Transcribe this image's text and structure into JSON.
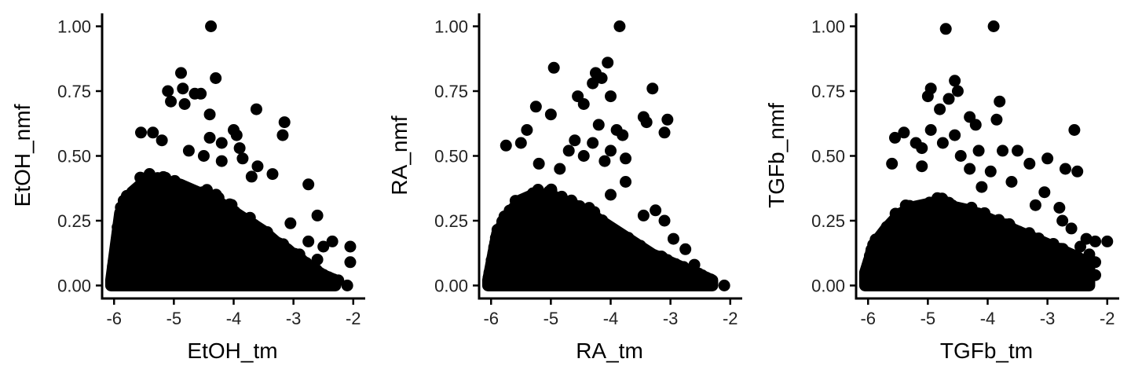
{
  "chart_data": [
    {
      "type": "scatter",
      "xlabel": "EtOH_tm",
      "ylabel": "EtOH_nmf",
      "xlim": [
        -6.2,
        -1.8
      ],
      "ylim": [
        -0.05,
        1.05
      ],
      "xticks": [
        -6,
        -5,
        -4,
        -3,
        -2
      ],
      "xtick_labels": [
        "-6",
        "-5",
        "-4",
        "-3",
        "-2"
      ],
      "yticks": [
        0,
        0.25,
        0.5,
        0.75,
        1.0
      ],
      "ytick_labels": [
        "0.00",
        "0.25",
        "0.50",
        "0.75",
        "1.00"
      ],
      "point_color": "#000000",
      "grid": false,
      "dense_region": {
        "x_start": -6.0,
        "x_end": -2.3,
        "edge_x": [
          -6.05,
          -5.9,
          -5.7,
          -5.5,
          -5.3,
          -5.1,
          -4.9,
          -4.7,
          -4.5,
          -4.3,
          -4.1,
          -3.9,
          -3.7,
          -3.5,
          -3.3,
          -3.1,
          -2.9,
          -2.7,
          -2.5,
          -2.3
        ],
        "edge_y": [
          0.02,
          0.28,
          0.36,
          0.4,
          0.41,
          0.4,
          0.39,
          0.37,
          0.35,
          0.33,
          0.3,
          0.27,
          0.24,
          0.21,
          0.17,
          0.14,
          0.1,
          0.07,
          0.04,
          0.02
        ]
      },
      "outliers": [
        {
          "x": -4.38,
          "y": 1.0
        },
        {
          "x": -4.88,
          "y": 0.82
        },
        {
          "x": -4.3,
          "y": 0.8
        },
        {
          "x": -5.1,
          "y": 0.75
        },
        {
          "x": -4.85,
          "y": 0.76
        },
        {
          "x": -4.55,
          "y": 0.74
        },
        {
          "x": -4.65,
          "y": 0.74
        },
        {
          "x": -5.05,
          "y": 0.71
        },
        {
          "x": -4.82,
          "y": 0.7
        },
        {
          "x": -3.62,
          "y": 0.68
        },
        {
          "x": -4.4,
          "y": 0.66
        },
        {
          "x": -3.15,
          "y": 0.63
        },
        {
          "x": -4.0,
          "y": 0.6
        },
        {
          "x": -5.55,
          "y": 0.59
        },
        {
          "x": -5.35,
          "y": 0.59
        },
        {
          "x": -3.95,
          "y": 0.58
        },
        {
          "x": -3.18,
          "y": 0.58
        },
        {
          "x": -4.4,
          "y": 0.57
        },
        {
          "x": -5.2,
          "y": 0.56
        },
        {
          "x": -4.2,
          "y": 0.55
        },
        {
          "x": -3.9,
          "y": 0.53
        },
        {
          "x": -4.75,
          "y": 0.52
        },
        {
          "x": -4.5,
          "y": 0.5
        },
        {
          "x": -3.85,
          "y": 0.49
        },
        {
          "x": -4.2,
          "y": 0.48
        },
        {
          "x": -3.6,
          "y": 0.46
        },
        {
          "x": -3.35,
          "y": 0.43
        },
        {
          "x": -3.7,
          "y": 0.42
        },
        {
          "x": -2.75,
          "y": 0.39
        },
        {
          "x": -3.05,
          "y": 0.24
        },
        {
          "x": -2.6,
          "y": 0.27
        },
        {
          "x": -2.35,
          "y": 0.17
        },
        {
          "x": -2.5,
          "y": 0.15
        },
        {
          "x": -2.75,
          "y": 0.17
        },
        {
          "x": -2.05,
          "y": 0.15
        },
        {
          "x": -2.6,
          "y": 0.1
        },
        {
          "x": -2.05,
          "y": 0.09
        },
        {
          "x": -2.9,
          "y": 0.12
        },
        {
          "x": -2.25,
          "y": 0.02
        },
        {
          "x": -2.1,
          "y": 0.0
        }
      ]
    },
    {
      "type": "scatter",
      "xlabel": "RA_tm",
      "ylabel": "RA_nmf",
      "xlim": [
        -6.2,
        -1.8
      ],
      "ylim": [
        -0.05,
        1.05
      ],
      "xticks": [
        -6,
        -5,
        -4,
        -3,
        -2
      ],
      "xtick_labels": [
        "-6",
        "-5",
        "-4",
        "-3",
        "-2"
      ],
      "yticks": [
        0,
        0.25,
        0.5,
        0.75,
        1.0
      ],
      "ytick_labels": [
        "0.00",
        "0.25",
        "0.50",
        "0.75",
        "1.00"
      ],
      "point_color": "#000000",
      "grid": false,
      "dense_region": {
        "x_start": -6.0,
        "x_end": -2.2,
        "edge_x": [
          -6.05,
          -5.9,
          -5.7,
          -5.5,
          -5.3,
          -5.1,
          -4.9,
          -4.7,
          -4.5,
          -4.3,
          -4.1,
          -3.9,
          -3.7,
          -3.5,
          -3.3,
          -3.1,
          -2.9,
          -2.7,
          -2.5,
          -2.3
        ],
        "edge_y": [
          0.02,
          0.2,
          0.28,
          0.33,
          0.35,
          0.35,
          0.34,
          0.32,
          0.3,
          0.27,
          0.24,
          0.21,
          0.18,
          0.15,
          0.12,
          0.1,
          0.08,
          0.06,
          0.04,
          0.02
        ]
      },
      "outliers": [
        {
          "x": -3.85,
          "y": 1.0
        },
        {
          "x": -4.05,
          "y": 0.86
        },
        {
          "x": -4.95,
          "y": 0.84
        },
        {
          "x": -4.25,
          "y": 0.82
        },
        {
          "x": -4.3,
          "y": 0.78
        },
        {
          "x": -4.15,
          "y": 0.8
        },
        {
          "x": -3.3,
          "y": 0.76
        },
        {
          "x": -4.55,
          "y": 0.73
        },
        {
          "x": -4.0,
          "y": 0.73
        },
        {
          "x": -4.45,
          "y": 0.7
        },
        {
          "x": -5.25,
          "y": 0.69
        },
        {
          "x": -3.45,
          "y": 0.65
        },
        {
          "x": -3.4,
          "y": 0.63
        },
        {
          "x": -3.05,
          "y": 0.64
        },
        {
          "x": -3.1,
          "y": 0.59
        },
        {
          "x": -5.0,
          "y": 0.66
        },
        {
          "x": -4.2,
          "y": 0.62
        },
        {
          "x": -3.9,
          "y": 0.6
        },
        {
          "x": -5.4,
          "y": 0.6
        },
        {
          "x": -4.6,
          "y": 0.56
        },
        {
          "x": -4.3,
          "y": 0.55
        },
        {
          "x": -4.0,
          "y": 0.52
        },
        {
          "x": -3.8,
          "y": 0.58
        },
        {
          "x": -4.7,
          "y": 0.52
        },
        {
          "x": -5.5,
          "y": 0.55
        },
        {
          "x": -5.75,
          "y": 0.54
        },
        {
          "x": -4.45,
          "y": 0.5
        },
        {
          "x": -4.1,
          "y": 0.48
        },
        {
          "x": -3.75,
          "y": 0.49
        },
        {
          "x": -4.85,
          "y": 0.45
        },
        {
          "x": -5.2,
          "y": 0.47
        },
        {
          "x": -3.75,
          "y": 0.4
        },
        {
          "x": -4.0,
          "y": 0.35
        },
        {
          "x": -3.25,
          "y": 0.29
        },
        {
          "x": -3.45,
          "y": 0.27
        },
        {
          "x": -3.1,
          "y": 0.25
        },
        {
          "x": -2.95,
          "y": 0.18
        },
        {
          "x": -2.75,
          "y": 0.14
        },
        {
          "x": -2.6,
          "y": 0.08
        },
        {
          "x": -2.35,
          "y": 0.02
        },
        {
          "x": -2.1,
          "y": 0.0
        },
        {
          "x": -2.5,
          "y": 0.04
        }
      ]
    },
    {
      "type": "scatter",
      "xlabel": "TGFb_tm",
      "ylabel": "TGFb_nmf",
      "xlim": [
        -6.2,
        -1.8
      ],
      "ylim": [
        -0.05,
        1.05
      ],
      "xticks": [
        -6,
        -5,
        -4,
        -3,
        -2
      ],
      "xtick_labels": [
        "-6",
        "-5",
        "-4",
        "-3",
        "-2"
      ],
      "yticks": [
        0,
        0.25,
        0.5,
        0.75,
        1.0
      ],
      "ytick_labels": [
        "0.00",
        "0.25",
        "0.50",
        "0.75",
        "1.00"
      ],
      "point_color": "#000000",
      "grid": false,
      "dense_region": {
        "x_start": -6.0,
        "x_end": -2.2,
        "edge_x": [
          -6.05,
          -5.9,
          -5.7,
          -5.5,
          -5.3,
          -5.1,
          -4.9,
          -4.7,
          -4.5,
          -4.3,
          -4.1,
          -3.9,
          -3.7,
          -3.5,
          -3.3,
          -3.1,
          -2.9,
          -2.7,
          -2.5,
          -2.3
        ],
        "edge_y": [
          0.05,
          0.16,
          0.22,
          0.27,
          0.3,
          0.31,
          0.32,
          0.31,
          0.3,
          0.29,
          0.27,
          0.25,
          0.23,
          0.21,
          0.19,
          0.17,
          0.15,
          0.13,
          0.11,
          0.08
        ]
      },
      "outliers": [
        {
          "x": -4.7,
          "y": 0.99
        },
        {
          "x": -3.9,
          "y": 1.0
        },
        {
          "x": -4.55,
          "y": 0.79
        },
        {
          "x": -4.5,
          "y": 0.75
        },
        {
          "x": -4.95,
          "y": 0.76
        },
        {
          "x": -5.0,
          "y": 0.73
        },
        {
          "x": -4.65,
          "y": 0.72
        },
        {
          "x": -3.8,
          "y": 0.71
        },
        {
          "x": -4.8,
          "y": 0.68
        },
        {
          "x": -4.3,
          "y": 0.65
        },
        {
          "x": -3.85,
          "y": 0.64
        },
        {
          "x": -4.2,
          "y": 0.62
        },
        {
          "x": -4.95,
          "y": 0.6
        },
        {
          "x": -5.4,
          "y": 0.59
        },
        {
          "x": -5.55,
          "y": 0.57
        },
        {
          "x": -4.55,
          "y": 0.58
        },
        {
          "x": -2.55,
          "y": 0.6
        },
        {
          "x": -5.2,
          "y": 0.55
        },
        {
          "x": -5.1,
          "y": 0.53
        },
        {
          "x": -4.75,
          "y": 0.55
        },
        {
          "x": -4.15,
          "y": 0.52
        },
        {
          "x": -3.75,
          "y": 0.52
        },
        {
          "x": -3.5,
          "y": 0.52
        },
        {
          "x": -4.45,
          "y": 0.5
        },
        {
          "x": -5.6,
          "y": 0.47
        },
        {
          "x": -5.1,
          "y": 0.46
        },
        {
          "x": -3.3,
          "y": 0.47
        },
        {
          "x": -3.0,
          "y": 0.49
        },
        {
          "x": -2.7,
          "y": 0.45
        },
        {
          "x": -2.5,
          "y": 0.44
        },
        {
          "x": -4.3,
          "y": 0.45
        },
        {
          "x": -3.95,
          "y": 0.44
        },
        {
          "x": -3.6,
          "y": 0.4
        },
        {
          "x": -4.1,
          "y": 0.38
        },
        {
          "x": -3.05,
          "y": 0.36
        },
        {
          "x": -3.2,
          "y": 0.31
        },
        {
          "x": -2.8,
          "y": 0.3
        },
        {
          "x": -2.75,
          "y": 0.25
        },
        {
          "x": -2.6,
          "y": 0.22
        },
        {
          "x": -2.35,
          "y": 0.18
        },
        {
          "x": -2.2,
          "y": 0.17
        },
        {
          "x": -2.0,
          "y": 0.17
        },
        {
          "x": -2.45,
          "y": 0.15
        },
        {
          "x": -2.3,
          "y": 0.12
        },
        {
          "x": -2.2,
          "y": 0.09
        },
        {
          "x": -2.35,
          "y": 0.06
        },
        {
          "x": -2.2,
          "y": 0.04
        }
      ]
    }
  ]
}
